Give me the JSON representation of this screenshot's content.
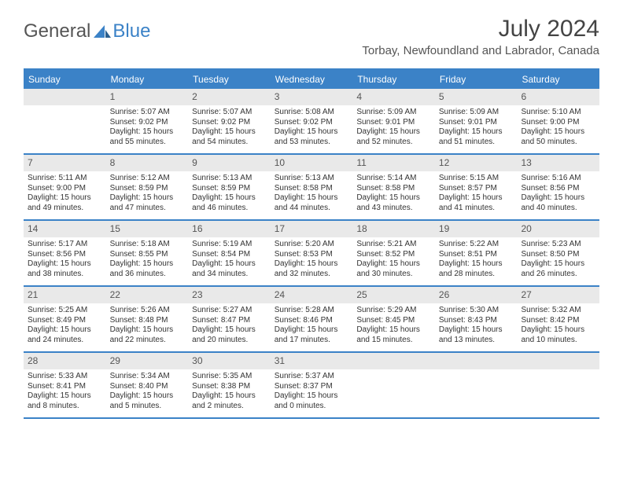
{
  "logo": {
    "text1": "General",
    "text2": "Blue"
  },
  "title": "July 2024",
  "location": "Torbay, Newfoundland and Labrador, Canada",
  "colors": {
    "header_bg": "#3b82c7",
    "daynum_bg": "#e9e9e9",
    "text": "#333333",
    "title_text": "#444444"
  },
  "daynames": [
    "Sunday",
    "Monday",
    "Tuesday",
    "Wednesday",
    "Thursday",
    "Friday",
    "Saturday"
  ],
  "weeks": [
    [
      {
        "day": "",
        "sunrise": "",
        "sunset": "",
        "daylight": ""
      },
      {
        "day": "1",
        "sunrise": "Sunrise: 5:07 AM",
        "sunset": "Sunset: 9:02 PM",
        "daylight": "Daylight: 15 hours and 55 minutes."
      },
      {
        "day": "2",
        "sunrise": "Sunrise: 5:07 AM",
        "sunset": "Sunset: 9:02 PM",
        "daylight": "Daylight: 15 hours and 54 minutes."
      },
      {
        "day": "3",
        "sunrise": "Sunrise: 5:08 AM",
        "sunset": "Sunset: 9:02 PM",
        "daylight": "Daylight: 15 hours and 53 minutes."
      },
      {
        "day": "4",
        "sunrise": "Sunrise: 5:09 AM",
        "sunset": "Sunset: 9:01 PM",
        "daylight": "Daylight: 15 hours and 52 minutes."
      },
      {
        "day": "5",
        "sunrise": "Sunrise: 5:09 AM",
        "sunset": "Sunset: 9:01 PM",
        "daylight": "Daylight: 15 hours and 51 minutes."
      },
      {
        "day": "6",
        "sunrise": "Sunrise: 5:10 AM",
        "sunset": "Sunset: 9:00 PM",
        "daylight": "Daylight: 15 hours and 50 minutes."
      }
    ],
    [
      {
        "day": "7",
        "sunrise": "Sunrise: 5:11 AM",
        "sunset": "Sunset: 9:00 PM",
        "daylight": "Daylight: 15 hours and 49 minutes."
      },
      {
        "day": "8",
        "sunrise": "Sunrise: 5:12 AM",
        "sunset": "Sunset: 8:59 PM",
        "daylight": "Daylight: 15 hours and 47 minutes."
      },
      {
        "day": "9",
        "sunrise": "Sunrise: 5:13 AM",
        "sunset": "Sunset: 8:59 PM",
        "daylight": "Daylight: 15 hours and 46 minutes."
      },
      {
        "day": "10",
        "sunrise": "Sunrise: 5:13 AM",
        "sunset": "Sunset: 8:58 PM",
        "daylight": "Daylight: 15 hours and 44 minutes."
      },
      {
        "day": "11",
        "sunrise": "Sunrise: 5:14 AM",
        "sunset": "Sunset: 8:58 PM",
        "daylight": "Daylight: 15 hours and 43 minutes."
      },
      {
        "day": "12",
        "sunrise": "Sunrise: 5:15 AM",
        "sunset": "Sunset: 8:57 PM",
        "daylight": "Daylight: 15 hours and 41 minutes."
      },
      {
        "day": "13",
        "sunrise": "Sunrise: 5:16 AM",
        "sunset": "Sunset: 8:56 PM",
        "daylight": "Daylight: 15 hours and 40 minutes."
      }
    ],
    [
      {
        "day": "14",
        "sunrise": "Sunrise: 5:17 AM",
        "sunset": "Sunset: 8:56 PM",
        "daylight": "Daylight: 15 hours and 38 minutes."
      },
      {
        "day": "15",
        "sunrise": "Sunrise: 5:18 AM",
        "sunset": "Sunset: 8:55 PM",
        "daylight": "Daylight: 15 hours and 36 minutes."
      },
      {
        "day": "16",
        "sunrise": "Sunrise: 5:19 AM",
        "sunset": "Sunset: 8:54 PM",
        "daylight": "Daylight: 15 hours and 34 minutes."
      },
      {
        "day": "17",
        "sunrise": "Sunrise: 5:20 AM",
        "sunset": "Sunset: 8:53 PM",
        "daylight": "Daylight: 15 hours and 32 minutes."
      },
      {
        "day": "18",
        "sunrise": "Sunrise: 5:21 AM",
        "sunset": "Sunset: 8:52 PM",
        "daylight": "Daylight: 15 hours and 30 minutes."
      },
      {
        "day": "19",
        "sunrise": "Sunrise: 5:22 AM",
        "sunset": "Sunset: 8:51 PM",
        "daylight": "Daylight: 15 hours and 28 minutes."
      },
      {
        "day": "20",
        "sunrise": "Sunrise: 5:23 AM",
        "sunset": "Sunset: 8:50 PM",
        "daylight": "Daylight: 15 hours and 26 minutes."
      }
    ],
    [
      {
        "day": "21",
        "sunrise": "Sunrise: 5:25 AM",
        "sunset": "Sunset: 8:49 PM",
        "daylight": "Daylight: 15 hours and 24 minutes."
      },
      {
        "day": "22",
        "sunrise": "Sunrise: 5:26 AM",
        "sunset": "Sunset: 8:48 PM",
        "daylight": "Daylight: 15 hours and 22 minutes."
      },
      {
        "day": "23",
        "sunrise": "Sunrise: 5:27 AM",
        "sunset": "Sunset: 8:47 PM",
        "daylight": "Daylight: 15 hours and 20 minutes."
      },
      {
        "day": "24",
        "sunrise": "Sunrise: 5:28 AM",
        "sunset": "Sunset: 8:46 PM",
        "daylight": "Daylight: 15 hours and 17 minutes."
      },
      {
        "day": "25",
        "sunrise": "Sunrise: 5:29 AM",
        "sunset": "Sunset: 8:45 PM",
        "daylight": "Daylight: 15 hours and 15 minutes."
      },
      {
        "day": "26",
        "sunrise": "Sunrise: 5:30 AM",
        "sunset": "Sunset: 8:43 PM",
        "daylight": "Daylight: 15 hours and 13 minutes."
      },
      {
        "day": "27",
        "sunrise": "Sunrise: 5:32 AM",
        "sunset": "Sunset: 8:42 PM",
        "daylight": "Daylight: 15 hours and 10 minutes."
      }
    ],
    [
      {
        "day": "28",
        "sunrise": "Sunrise: 5:33 AM",
        "sunset": "Sunset: 8:41 PM",
        "daylight": "Daylight: 15 hours and 8 minutes."
      },
      {
        "day": "29",
        "sunrise": "Sunrise: 5:34 AM",
        "sunset": "Sunset: 8:40 PM",
        "daylight": "Daylight: 15 hours and 5 minutes."
      },
      {
        "day": "30",
        "sunrise": "Sunrise: 5:35 AM",
        "sunset": "Sunset: 8:38 PM",
        "daylight": "Daylight: 15 hours and 2 minutes."
      },
      {
        "day": "31",
        "sunrise": "Sunrise: 5:37 AM",
        "sunset": "Sunset: 8:37 PM",
        "daylight": "Daylight: 15 hours and 0 minutes."
      },
      {
        "day": "",
        "sunrise": "",
        "sunset": "",
        "daylight": ""
      },
      {
        "day": "",
        "sunrise": "",
        "sunset": "",
        "daylight": ""
      },
      {
        "day": "",
        "sunrise": "",
        "sunset": "",
        "daylight": ""
      }
    ]
  ]
}
